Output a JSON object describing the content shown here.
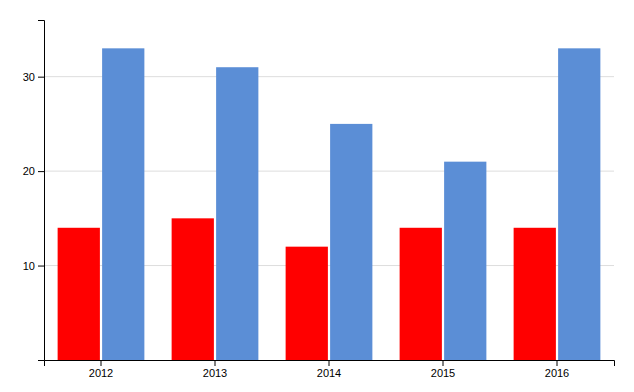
{
  "chart_data": {
    "type": "bar",
    "categories": [
      "2012",
      "2013",
      "2014",
      "2015",
      "2016"
    ],
    "series": [
      {
        "color": "#ff0000",
        "values": [
          14,
          15,
          12,
          14,
          14
        ]
      },
      {
        "color": "#5b8ed6",
        "values": [
          33,
          31,
          25,
          21,
          33
        ]
      }
    ],
    "ylim": [
      0,
      36
    ],
    "yticks": [
      10,
      20,
      30
    ],
    "grid": true
  }
}
